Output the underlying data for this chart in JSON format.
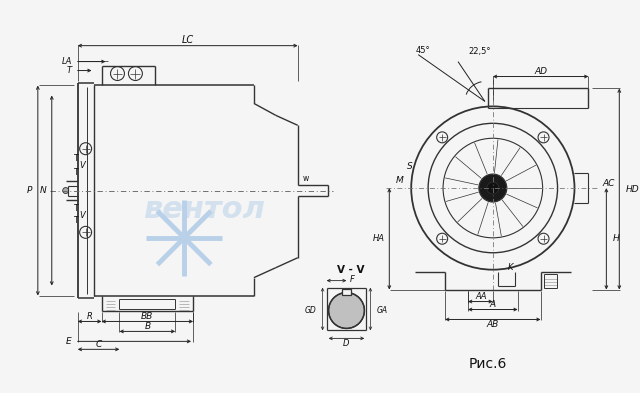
{
  "bg_color": "#f5f5f5",
  "line_color": "#333333",
  "dim_color": "#222222",
  "fig_caption": "Рис.6",
  "section_label": "V - V",
  "watermark_text": "вентол",
  "watermark_color": "#b8d0e8",
  "watermark_alpha": 0.55
}
